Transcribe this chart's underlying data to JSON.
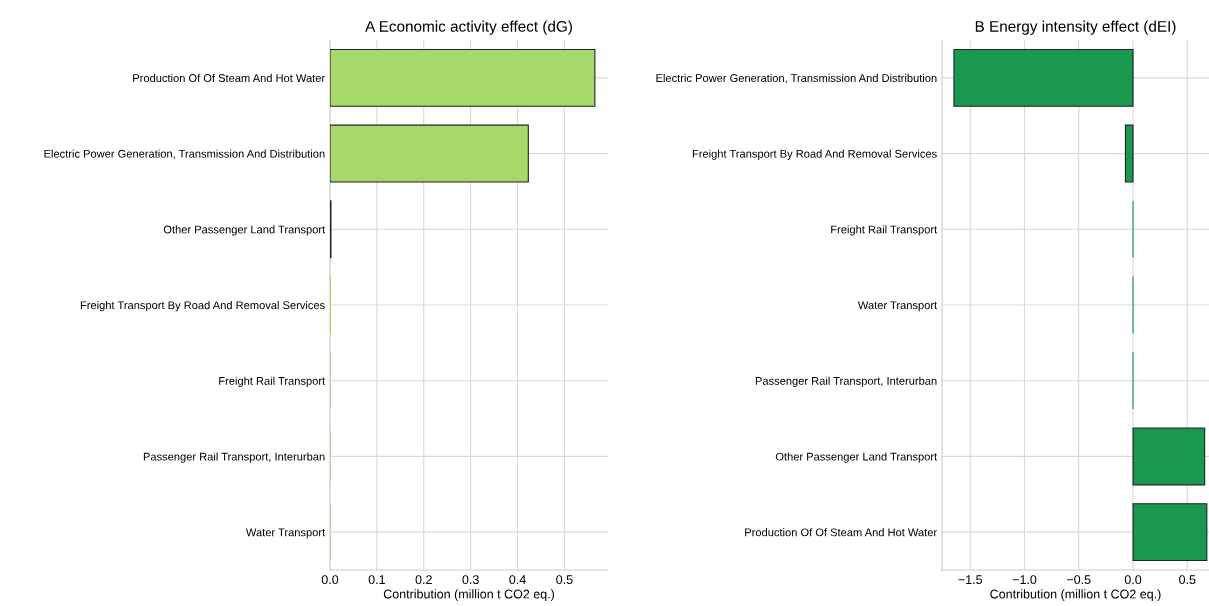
{
  "chart_data": [
    {
      "type": "bar",
      "orientation": "horizontal",
      "title": "A Economic activity effect (dG)",
      "xlabel": "Contribution (million t CO2 eq.)",
      "categories": [
        "Production Of Of Steam And Hot Water",
        "Electric Power Generation, Transmission And Distribution",
        "Other Passenger Land Transport",
        "Freight Transport By Road And Removal Services",
        "Freight Rail Transport",
        "Passenger Rail Transport, Interurban",
        "Water Transport"
      ],
      "values": [
        0.565,
        0.423,
        0.002,
        0.001,
        0,
        0,
        0
      ],
      "color": "#a6d96a",
      "xlim": [
        0,
        0.593
      ],
      "xticks": [
        {
          "value": 0,
          "label": "0.0"
        },
        0.1,
        0.2,
        0.3,
        0.4,
        0.5
      ],
      "grid": true
    },
    {
      "type": "bar",
      "orientation": "horizontal",
      "title": "B Energy intensity effect (dEI)",
      "xlabel": "Contribution (million t CO2 eq.)",
      "categories": [
        "Electric Power Generation, Transmission And Distribution",
        "Freight Transport By Road And Removal Services",
        "Freight Rail Transport",
        "Water Transport",
        "Passenger Rail Transport, Interurban",
        "Other Passenger Land Transport",
        "Production Of Of Steam And Hot Water"
      ],
      "values": [
        -1.65,
        -0.07,
        0,
        0,
        0,
        0.66,
        0.68
      ],
      "color": "#1a9850",
      "xlim": [
        -1.76,
        0.7
      ],
      "xticks": [
        {
          "value": -1.5,
          "label": "−1.5"
        },
        {
          "value": -1.0,
          "label": "−1.0"
        },
        {
          "value": -0.5,
          "label": "−0.5"
        },
        {
          "value": 0,
          "label": "0.0"
        },
        0.5
      ],
      "grid": true
    }
  ]
}
